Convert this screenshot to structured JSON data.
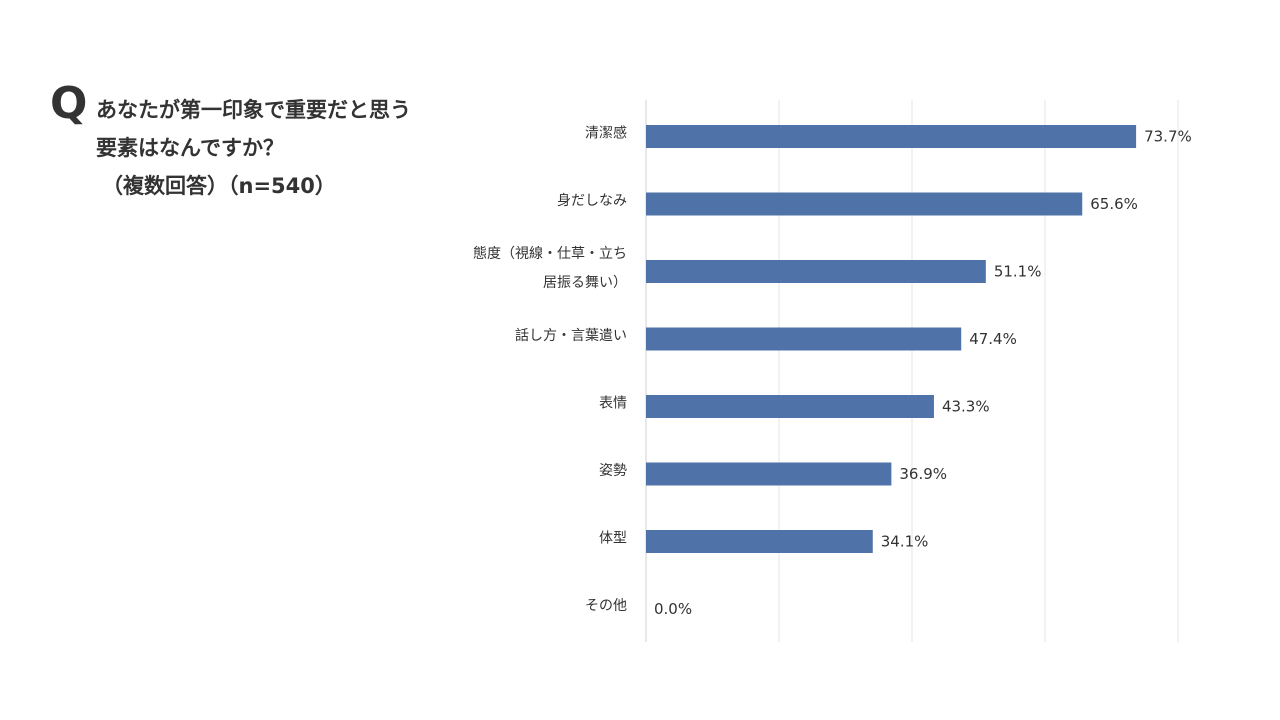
{
  "question": {
    "mark": "Q",
    "lines": [
      "あなたが第一印象で重要だと思う",
      "要素はなんですか？",
      "（複数回答）（n=540）"
    ]
  },
  "chart_data": {
    "type": "bar",
    "orientation": "horizontal",
    "categories": [
      [
        "清潔感"
      ],
      [
        "身だしなみ"
      ],
      [
        "態度（視線・仕草・立ち",
        "居振る舞い）"
      ],
      [
        "話し方・言葉遣い"
      ],
      [
        "表情"
      ],
      [
        "姿勢"
      ],
      [
        "体型"
      ],
      [
        "その他"
      ]
    ],
    "values": [
      73.7,
      65.6,
      51.1,
      47.4,
      43.3,
      36.9,
      34.1,
      0.0
    ],
    "value_labels": [
      "73.7%",
      "65.6%",
      "51.1%",
      "47.4%",
      "43.3%",
      "36.9%",
      "34.1%",
      "0.0%"
    ],
    "unit": "%",
    "xlim": [
      0,
      80
    ],
    "grid": true,
    "bar_color": "#4f72a8",
    "grid_color": "#e6e6e6"
  }
}
